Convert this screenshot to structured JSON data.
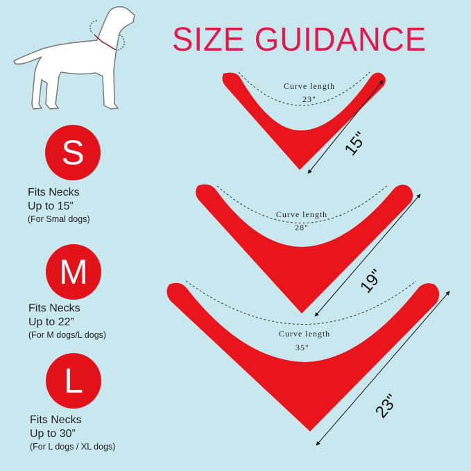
{
  "title": "SIZE GUIDANCE",
  "colors": {
    "background": "#c9e7ee",
    "accent": "#e2121b",
    "title": "#e0194b"
  },
  "sizes": [
    {
      "letter": "S",
      "line1": "Fits Necks",
      "line2": "Up to 15”",
      "note": "(For Smal dogs)",
      "curve_label": "Curve length",
      "curve_value": "23\"",
      "height_value": "15\""
    },
    {
      "letter": "M",
      "line1": "Fits Necks",
      "line2": "Up to 22”",
      "note": "(For M dogs/L dogs)",
      "curve_label": "Curve length",
      "curve_value": "28\"",
      "height_value": "19\""
    },
    {
      "letter": "L",
      "line1": "Fits Necks",
      "line2": "Up to 30”",
      "note": "(For L dogs / XL dogs)",
      "curve_label": "Curve length",
      "curve_value": "35\"",
      "height_value": "23\""
    }
  ]
}
